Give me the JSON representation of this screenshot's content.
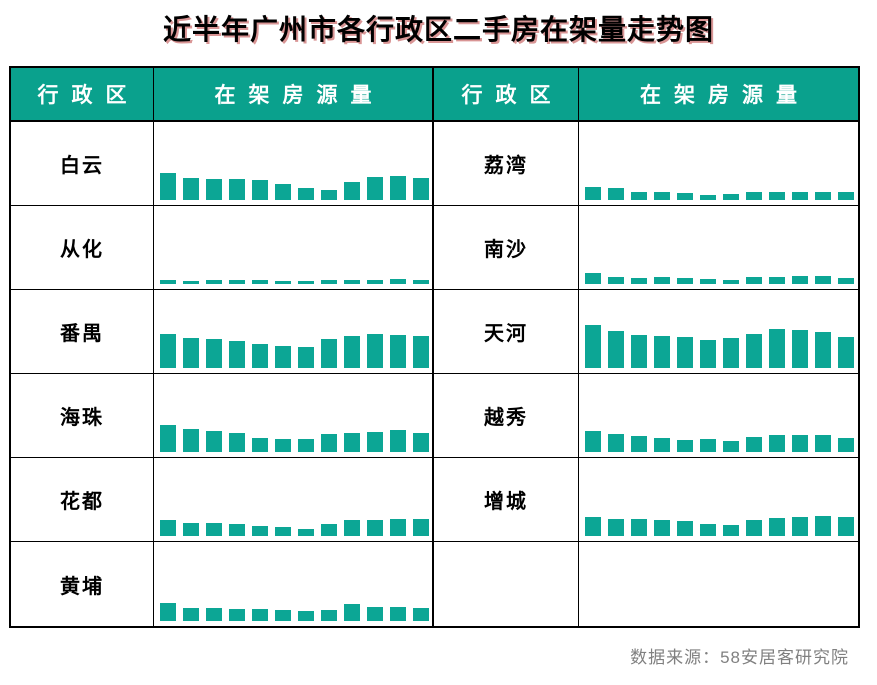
{
  "page": {
    "title": "近半年广州市各行政区二手房在架量走势图",
    "source_note": "数据来源：58安居客研究院"
  },
  "colors": {
    "header_bg": "#0AA18D",
    "bar": "#0CA695",
    "border": "#000000",
    "source_text": "#808080",
    "title_text": "#000000"
  },
  "table": {
    "headers": [
      "行政区",
      "在架房源量",
      "行政区",
      "在架房源量"
    ],
    "rows": [
      {
        "left_district": "白云",
        "right_district": "荔湾"
      },
      {
        "left_district": "从化",
        "right_district": "南沙"
      },
      {
        "left_district": "番禺",
        "right_district": "天河"
      },
      {
        "left_district": "海珠",
        "right_district": "越秀"
      },
      {
        "left_district": "花都",
        "right_district": "增城"
      },
      {
        "left_district": "黄埔",
        "right_district": ""
      }
    ]
  },
  "chart_data": {
    "type": "bar",
    "title": "近半年广州市各行政区二手房在架量走势图",
    "xlabel": "近半年12个时间观测点（图中无刻度标注）",
    "ylabel": "在架房源量（相对高度，图中未标数值）",
    "legend": false,
    "grid": false,
    "axes_visible": false,
    "bars_per_series": 12,
    "series": [
      {
        "name": "白云",
        "values": [
          27,
          22,
          21,
          21,
          20,
          16,
          12,
          10,
          18,
          23,
          24,
          22
        ]
      },
      {
        "name": "从化",
        "values": [
          4,
          3,
          4,
          4,
          4,
          3,
          3,
          4,
          4,
          4,
          5,
          4
        ]
      },
      {
        "name": "番禺",
        "values": [
          34,
          30,
          29,
          27,
          24,
          22,
          21,
          29,
          32,
          34,
          33,
          32
        ]
      },
      {
        "name": "海珠",
        "values": [
          27,
          23,
          21,
          19,
          14,
          13,
          13,
          18,
          19,
          20,
          22,
          19
        ]
      },
      {
        "name": "花都",
        "values": [
          16,
          13,
          13,
          12,
          10,
          9,
          7,
          12,
          16,
          16,
          17,
          17
        ]
      },
      {
        "name": "黄埔",
        "values": [
          18,
          13,
          13,
          12,
          12,
          11,
          10,
          11,
          17,
          14,
          14,
          13
        ]
      },
      {
        "name": "荔湾",
        "values": [
          13,
          12,
          8,
          8,
          7,
          5,
          6,
          8,
          8,
          8,
          8,
          8
        ]
      },
      {
        "name": "南沙",
        "values": [
          11,
          7,
          6,
          7,
          6,
          5,
          4,
          7,
          7,
          8,
          8,
          6
        ]
      },
      {
        "name": "天河",
        "values": [
          43,
          37,
          33,
          32,
          31,
          28,
          30,
          34,
          39,
          38,
          36,
          31
        ]
      },
      {
        "name": "越秀",
        "values": [
          21,
          18,
          16,
          14,
          12,
          13,
          11,
          15,
          17,
          17,
          17,
          14
        ]
      },
      {
        "name": "增城",
        "values": [
          19,
          17,
          17,
          16,
          15,
          12,
          11,
          16,
          18,
          19,
          20,
          19
        ]
      }
    ]
  }
}
